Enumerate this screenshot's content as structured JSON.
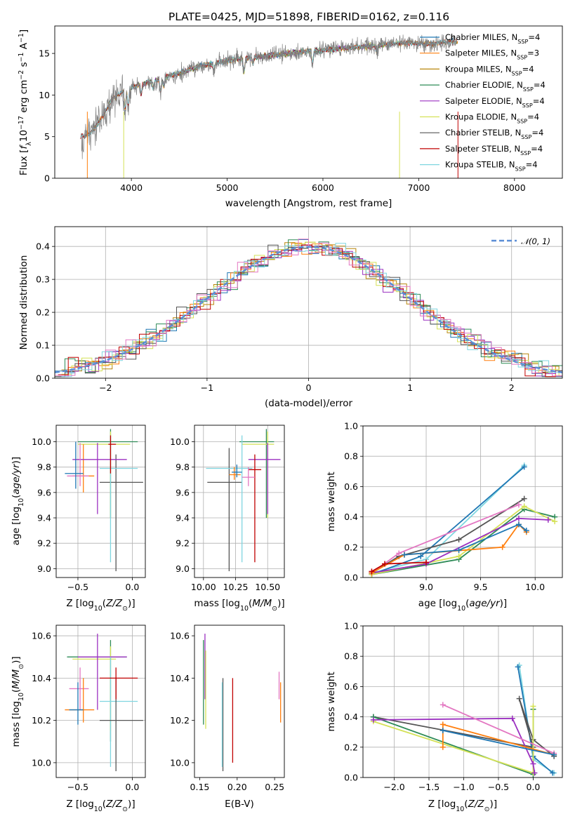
{
  "colors": {
    "Chabrier MILES": "#1f77b4",
    "Salpeter MILES": "#ff7f0e",
    "Kroupa MILES": "#b8860b",
    "Chabrier ELODIE": "#2e8b57",
    "Salpeter ELODIE": "#9b30c0",
    "Kroupa ELODIE": "#d4e157",
    "Chabrier STELIB": "#555555",
    "Salpeter STELIB": "#c00000",
    "Kroupa STELIB": "#7fd6e0",
    "pink": "#e377c2",
    "gauss": "#5b8ed6",
    "data": "#808080"
  },
  "chart_data": [
    {
      "id": "spectrum",
      "type": "line",
      "title": "PLATE=0425, MJD=51898, FIBERID=0162, z=0.116",
      "xlabel": "wavelength [Angstrom, rest frame]",
      "ylabel": "Flux [f_λ10^-17 erg cm^-2 s^-1 A^-1]",
      "xlim": [
        3200,
        8500
      ],
      "ylim": [
        0,
        18.3
      ],
      "xticks": [
        4000,
        5000,
        6000,
        7000,
        8000
      ],
      "yticks": [
        0,
        5,
        10,
        15
      ],
      "legend_position": "right",
      "data_series": {
        "name": "data",
        "x": [
          3450,
          3550,
          3650,
          3800,
          3950,
          4100,
          4300,
          4500,
          4700,
          4900,
          5100,
          5300,
          5500,
          5700,
          5900,
          6100,
          6300,
          6500,
          6700,
          6900,
          7100,
          7300
        ],
        "y": [
          5.0,
          5.2,
          6.5,
          9.5,
          10.8,
          11.3,
          11.9,
          12.6,
          13.4,
          13.9,
          14.3,
          14.6,
          14.8,
          15.1,
          15.3,
          15.5,
          15.7,
          15.9,
          16.1,
          16.3,
          16.1,
          16.4
        ]
      },
      "model_series": [
        {
          "name": "Chabrier MILES",
          "nssp": "4"
        },
        {
          "name": "Salpeter MILES",
          "nssp": "3"
        },
        {
          "name": "Kroupa MILES",
          "nssp": "4"
        },
        {
          "name": "Chabrier ELODIE",
          "nssp": "4"
        },
        {
          "name": "Salpeter ELODIE",
          "nssp": "4"
        },
        {
          "name": "Kroupa ELODIE",
          "nssp": "4"
        },
        {
          "name": "Chabrier STELIB",
          "nssp": "4"
        },
        {
          "name": "Salpeter STELIB",
          "nssp": "4"
        },
        {
          "name": "Kroupa STELIB",
          "nssp": "4"
        }
      ]
    },
    {
      "id": "residuals",
      "type": "step",
      "xlabel": "(data-model)/error",
      "ylabel": "Normed distribution",
      "xlim": [
        -2.5,
        2.5
      ],
      "ylim": [
        0,
        0.46
      ],
      "xticks": [
        -2,
        -1,
        0,
        1,
        2
      ],
      "yticks": [
        0.0,
        0.1,
        0.2,
        0.3,
        0.4
      ],
      "grid": true,
      "legend": "𝒩(0, 1)",
      "legend_position": "top-right"
    },
    {
      "id": "age-vs-Z",
      "type": "errorbar",
      "xlabel": "Z [log10(Z/Z⊙)]",
      "ylabel": "age  [log10(age/yr)]",
      "xlim": [
        -0.7,
        0.12
      ],
      "ylim": [
        8.93,
        10.13
      ],
      "xticks": [
        -0.5,
        0.0
      ],
      "yticks": [
        9.0,
        9.2,
        9.4,
        9.6,
        9.8,
        10.0
      ],
      "grid": true,
      "points": [
        {
          "c": "Chabrier ELODIE",
          "x": -0.2,
          "y": 10.0,
          "xe": [
            -0.5,
            0.05
          ],
          "ye": [
            9.4,
            10.1
          ]
        },
        {
          "c": "Kroupa ELODIE",
          "x": -0.2,
          "y": 9.98,
          "xe": [
            -0.5,
            -0.02
          ],
          "ye": [
            9.4,
            10.08
          ]
        },
        {
          "c": "Salpeter MILES",
          "x": -0.45,
          "y": 9.73,
          "xe": [
            -0.55,
            -0.35
          ],
          "ye": [
            9.6,
            9.98
          ]
        },
        {
          "c": "Chabrier STELIB",
          "x": -0.15,
          "y": 9.68,
          "xe": [
            -0.3,
            0.1
          ],
          "ye": [
            8.98,
            9.9
          ]
        },
        {
          "c": "Kroupa STELIB",
          "x": -0.2,
          "y": 9.79,
          "xe": [
            -0.3,
            0.05
          ],
          "ye": [
            9.05,
            10.05
          ]
        },
        {
          "c": "Salpeter ELODIE",
          "x": -0.32,
          "y": 9.86,
          "xe": [
            -0.55,
            -0.05
          ],
          "ye": [
            9.43,
            9.99
          ]
        },
        {
          "c": "pink",
          "x": -0.48,
          "y": 9.73,
          "xe": [
            -0.6,
            -0.4
          ],
          "ye": [
            9.65,
            9.99
          ]
        },
        {
          "c": "Chabrier MILES",
          "x": -0.52,
          "y": 9.75,
          "xe": [
            -0.62,
            -0.45
          ],
          "ye": [
            9.63,
            10.0
          ]
        },
        {
          "c": "Salpeter STELIB",
          "x": -0.2,
          "y": 9.98,
          "xe": [
            -0.22,
            -0.15
          ],
          "ye": [
            9.75,
            10.05
          ]
        }
      ]
    },
    {
      "id": "age-vs-mass",
      "type": "errorbar",
      "xlabel": "mass [log10(M/M⊙)]",
      "ylabel": "",
      "xlim": [
        9.93,
        10.63
      ],
      "ylim": [
        8.93,
        10.13
      ],
      "xticks": [
        10.0,
        10.25,
        10.5
      ],
      "yticks": [
        9.0,
        9.2,
        9.4,
        9.6,
        9.8,
        10.0
      ],
      "grid": true,
      "points": [
        {
          "c": "Chabrier ELODIE",
          "x": 10.49,
          "y": 10.0,
          "xe": [
            10.28,
            10.55
          ],
          "ye": [
            9.4,
            10.1
          ]
        },
        {
          "c": "Kroupa ELODIE",
          "x": 10.5,
          "y": 9.98,
          "xe": [
            10.3,
            10.55
          ],
          "ye": [
            9.4,
            10.08
          ]
        },
        {
          "c": "Salpeter ELODIE",
          "x": 10.5,
          "y": 9.86,
          "xe": [
            10.35,
            10.6
          ],
          "ye": [
            9.43,
            9.99
          ]
        },
        {
          "c": "Chabrier STELIB",
          "x": 10.2,
          "y": 9.68,
          "xe": [
            10.03,
            10.3
          ],
          "ye": [
            8.98,
            9.95
          ]
        },
        {
          "c": "Kroupa STELIB",
          "x": 10.3,
          "y": 9.79,
          "xe": [
            10.02,
            10.38
          ],
          "ye": [
            9.05,
            10.05
          ]
        },
        {
          "c": "Salpeter STELIB",
          "x": 10.4,
          "y": 9.78,
          "xe": [
            10.35,
            10.45
          ],
          "ye": [
            9.05,
            9.9
          ]
        },
        {
          "c": "pink",
          "x": 10.35,
          "y": 9.72,
          "xe": [
            10.3,
            10.4
          ],
          "ye": [
            9.65,
            9.8
          ]
        },
        {
          "c": "Salpeter MILES",
          "x": 10.24,
          "y": 9.74,
          "xe": [
            10.2,
            10.29
          ],
          "ye": [
            9.7,
            9.8
          ]
        },
        {
          "c": "Chabrier MILES",
          "x": 10.26,
          "y": 9.76,
          "xe": [
            10.22,
            10.3
          ],
          "ye": [
            9.72,
            9.82
          ]
        }
      ]
    },
    {
      "id": "weight-vs-age",
      "type": "line",
      "xlabel": "age  [log10(age/yr)]",
      "ylabel": "mass weight",
      "xlim": [
        8.42,
        10.25
      ],
      "ylim": [
        0.0,
        1.0
      ],
      "xticks": [
        9.0,
        9.5,
        10.0
      ],
      "yticks": [
        0.0,
        0.2,
        0.4,
        0.6,
        0.8,
        1.0
      ],
      "grid": true,
      "series": [
        {
          "c": "Kroupa STELIB",
          "x": [
            8.5,
            9.0,
            9.9
          ],
          "y": [
            0.03,
            0.12,
            0.74
          ]
        },
        {
          "c": "Chabrier MILES",
          "x": [
            8.5,
            8.95,
            9.9
          ],
          "y": [
            0.02,
            0.14,
            0.73
          ]
        },
        {
          "c": "Chabrier STELIB",
          "x": [
            8.5,
            8.75,
            9.3,
            9.9
          ],
          "y": [
            0.03,
            0.14,
            0.25,
            0.52
          ]
        },
        {
          "c": "Chabrier ELODIE",
          "x": [
            8.5,
            9.3,
            9.9,
            10.18
          ],
          "y": [
            0.02,
            0.12,
            0.45,
            0.4
          ]
        },
        {
          "c": "Kroupa ELODIE",
          "x": [
            8.5,
            9.3,
            9.9,
            10.18
          ],
          "y": [
            0.02,
            0.14,
            0.47,
            0.37
          ]
        },
        {
          "c": "Salpeter ELODIE",
          "x": [
            8.5,
            9.0,
            9.85,
            10.12
          ],
          "y": [
            0.03,
            0.09,
            0.39,
            0.38
          ]
        },
        {
          "c": "pink",
          "x": [
            8.5,
            8.75,
            9.85
          ],
          "y": [
            0.03,
            0.16,
            0.48
          ]
        },
        {
          "c": "Salpeter MILES",
          "x": [
            8.5,
            8.8,
            9.7,
            9.85,
            9.92
          ],
          "y": [
            0.03,
            0.15,
            0.2,
            0.35,
            0.3
          ]
        },
        {
          "c": "Chabrier MILES",
          "x": [
            8.8,
            9.3,
            9.85,
            9.92
          ],
          "y": [
            0.15,
            0.18,
            0.35,
            0.31
          ]
        },
        {
          "c": "Salpeter STELIB",
          "x": [
            8.5,
            8.62,
            9.0
          ],
          "y": [
            0.04,
            0.09,
            0.1
          ]
        }
      ]
    },
    {
      "id": "mass-vs-Z",
      "type": "errorbar",
      "xlabel": "Z [log10(Z/Z⊙)]",
      "ylabel": "mass [log10(M/M⊙)]",
      "xlim": [
        -0.7,
        0.12
      ],
      "ylim": [
        9.93,
        10.65
      ],
      "xticks": [
        -0.5,
        0.0
      ],
      "yticks": [
        10.0,
        10.2,
        10.4,
        10.6
      ],
      "grid": true,
      "points": [
        {
          "c": "Chabrier ELODIE",
          "x": -0.2,
          "y": 10.5,
          "xe": [
            -0.6,
            -0.05
          ],
          "ye": [
            10.1,
            10.58
          ]
        },
        {
          "c": "Kroupa ELODIE",
          "x": -0.2,
          "y": 10.49,
          "xe": [
            -0.55,
            -0.15
          ],
          "ye": [
            10.15,
            10.55
          ]
        },
        {
          "c": "Salpeter ELODIE",
          "x": -0.32,
          "y": 10.5,
          "xe": [
            -0.5,
            -0.05
          ],
          "ye": [
            10.25,
            10.61
          ]
        },
        {
          "c": "pink",
          "x": -0.48,
          "y": 10.35,
          "xe": [
            -0.58,
            -0.4
          ],
          "ye": [
            10.25,
            10.45
          ]
        },
        {
          "c": "Salpeter MILES",
          "x": -0.45,
          "y": 10.25,
          "xe": [
            -0.62,
            -0.35
          ],
          "ye": [
            10.19,
            10.4
          ]
        },
        {
          "c": "Chabrier MILES",
          "x": -0.5,
          "y": 10.25,
          "xe": [
            -0.58,
            -0.45
          ],
          "ye": [
            10.18,
            10.38
          ]
        },
        {
          "c": "Kroupa STELIB",
          "x": -0.2,
          "y": 10.29,
          "xe": [
            -0.3,
            0.05
          ],
          "ye": [
            9.98,
            10.5
          ]
        },
        {
          "c": "Chabrier STELIB",
          "x": -0.15,
          "y": 10.2,
          "xe": [
            -0.3,
            0.1
          ],
          "ye": [
            9.96,
            10.4
          ]
        },
        {
          "c": "Salpeter STELIB",
          "x": -0.15,
          "y": 10.4,
          "xe": [
            -0.3,
            0.05
          ],
          "ye": [
            10.3,
            10.45
          ]
        }
      ]
    },
    {
      "id": "mass-vs-ebv",
      "type": "errorbar",
      "xlabel": "E(B-V)",
      "ylabel": "",
      "xlim": [
        0.143,
        0.263
      ],
      "ylim": [
        9.93,
        10.65
      ],
      "xticks": [
        0.15,
        0.2,
        0.25
      ],
      "yticks": [
        10.0,
        10.2,
        10.4,
        10.6
      ],
      "grid": false,
      "points": [
        {
          "c": "Chabrier ELODIE",
          "x": 0.155,
          "y": 10.38,
          "ye": [
            10.18,
            10.58
          ]
        },
        {
          "c": "Salpeter ELODIE",
          "x": 0.157,
          "y": 10.45,
          "ye": [
            10.3,
            10.61
          ]
        },
        {
          "c": "Kroupa ELODIE",
          "x": 0.158,
          "y": 10.35,
          "ye": [
            10.16,
            10.53
          ]
        },
        {
          "c": "Chabrier STELIB",
          "x": 0.181,
          "y": 10.2,
          "ye": [
            9.96,
            10.4
          ]
        },
        {
          "c": "Kroupa STELIB",
          "x": 0.18,
          "y": 10.18,
          "ye": [
            9.98,
            10.38
          ]
        },
        {
          "c": "Salpeter STELIB",
          "x": 0.194,
          "y": 10.2,
          "ye": [
            10.0,
            10.4
          ]
        },
        {
          "c": "pink",
          "x": 0.256,
          "y": 10.35,
          "ye": [
            10.3,
            10.43
          ]
        },
        {
          "c": "Salpeter MILES",
          "x": 0.258,
          "y": 10.25,
          "ye": [
            10.19,
            10.38
          ]
        }
      ]
    },
    {
      "id": "weight-vs-Z",
      "type": "line",
      "xlabel": "Z [log10(Z/Z⊙)]",
      "ylabel": "mass weight",
      "xlim": [
        -2.45,
        0.42
      ],
      "ylim": [
        0.0,
        1.0
      ],
      "xticks": [
        -2.0,
        -1.5,
        -1.0,
        -0.5,
        0.0
      ],
      "yticks": [
        0.0,
        0.2,
        0.4,
        0.6,
        0.8,
        1.0
      ],
      "grid": true,
      "series": [
        {
          "c": "Kroupa STELIB",
          "x": [
            -0.2,
            0.0,
            0.3
          ],
          "y": [
            0.74,
            0.12,
            0.03
          ]
        },
        {
          "c": "Chabrier MILES",
          "x": [
            -0.22,
            0.0,
            0.28
          ],
          "y": [
            0.73,
            0.14,
            0.03
          ]
        },
        {
          "c": "Chabrier STELIB",
          "x": [
            -2.3,
            0.0,
            -0.2,
            0.0,
            0.3
          ],
          "y": [
            0.4,
            0.2,
            0.52,
            0.25,
            0.14
          ]
        },
        {
          "c": "Chabrier ELODIE",
          "x": [
            -2.3,
            0.0,
            0.0
          ],
          "y": [
            0.4,
            0.02,
            0.45
          ]
        },
        {
          "c": "Kroupa ELODIE",
          "x": [
            -2.3,
            0.0,
            0.0
          ],
          "y": [
            0.37,
            0.03,
            0.47
          ]
        },
        {
          "c": "Salpeter ELODIE",
          "x": [
            -2.3,
            -0.3,
            0.0,
            0.02
          ],
          "y": [
            0.38,
            0.39,
            0.09,
            0.03
          ]
        },
        {
          "c": "pink",
          "x": [
            -1.3,
            0.3
          ],
          "y": [
            0.48,
            0.16
          ]
        },
        {
          "c": "Salpeter MILES",
          "x": [
            -1.3,
            -1.3,
            0.3
          ],
          "y": [
            0.2,
            0.35,
            0.15
          ]
        },
        {
          "c": "Chabrier MILES",
          "x": [
            -1.3,
            0.3
          ],
          "y": [
            0.31,
            0.15
          ]
        }
      ]
    }
  ]
}
